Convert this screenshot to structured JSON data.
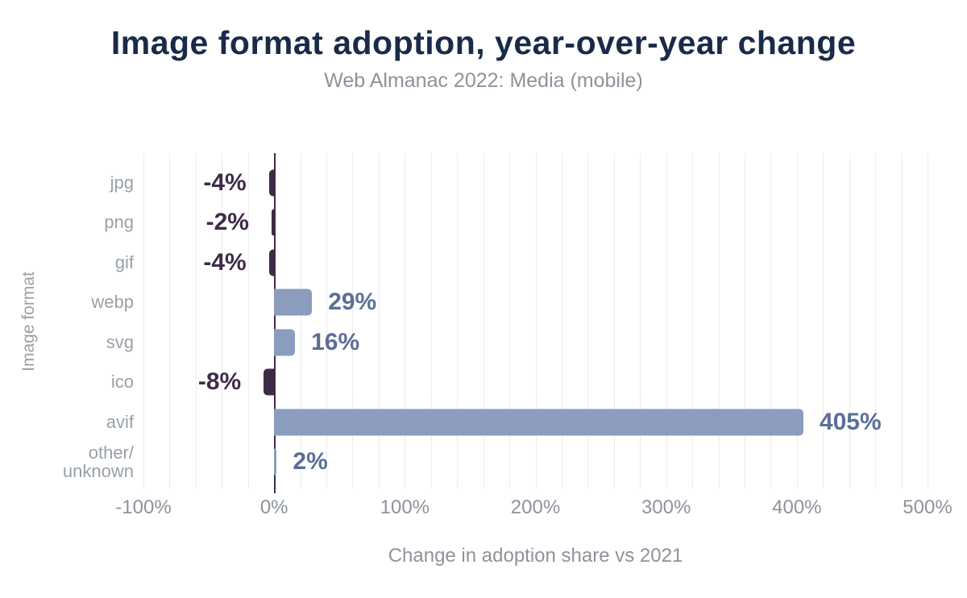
{
  "header": {
    "title": "Image format adoption, year-over-year change",
    "subtitle": "Web Almanac 2022: Media (mobile)"
  },
  "chart_data": {
    "type": "bar",
    "orientation": "horizontal",
    "title": "Image format adoption, year-over-year change",
    "subtitle": "Web Almanac 2022: Media (mobile)",
    "xlabel": "Change in adoption share vs 2021",
    "ylabel": "Image format",
    "categories": [
      "jpg",
      "png",
      "gif",
      "webp",
      "svg",
      "ico",
      "avif",
      "other/unknown"
    ],
    "category_display_lines": [
      [
        "jpg"
      ],
      [
        "png"
      ],
      [
        "gif"
      ],
      [
        "webp"
      ],
      [
        "svg"
      ],
      [
        "ico"
      ],
      [
        "avif"
      ],
      [
        "other/",
        "unknown"
      ]
    ],
    "values": [
      -4,
      -2,
      -4,
      29,
      16,
      -8,
      405,
      2
    ],
    "value_labels": [
      "-4%",
      "-2%",
      "-4%",
      "29%",
      "16%",
      "-8%",
      "405%",
      "2%"
    ],
    "xlim": [
      -100,
      500
    ],
    "xticks": [
      -100,
      0,
      100,
      200,
      300,
      400,
      500
    ],
    "xtick_labels": [
      "-100%",
      "0%",
      "100%",
      "200%",
      "300%",
      "400%",
      "500%"
    ],
    "grid_step": 20,
    "grid": true,
    "legend": "none",
    "colors": {
      "negative_bar": "#3f2b47",
      "negative_label": "#3f2b47",
      "positive_bar": "#8b9cbe",
      "positive_label": "#5b6e96",
      "gridline": "#ececf0",
      "zero_line": "#3f2b47",
      "title": "#1a2b49",
      "muted_text": "#8d939b",
      "category_text": "#99a0a8"
    }
  }
}
